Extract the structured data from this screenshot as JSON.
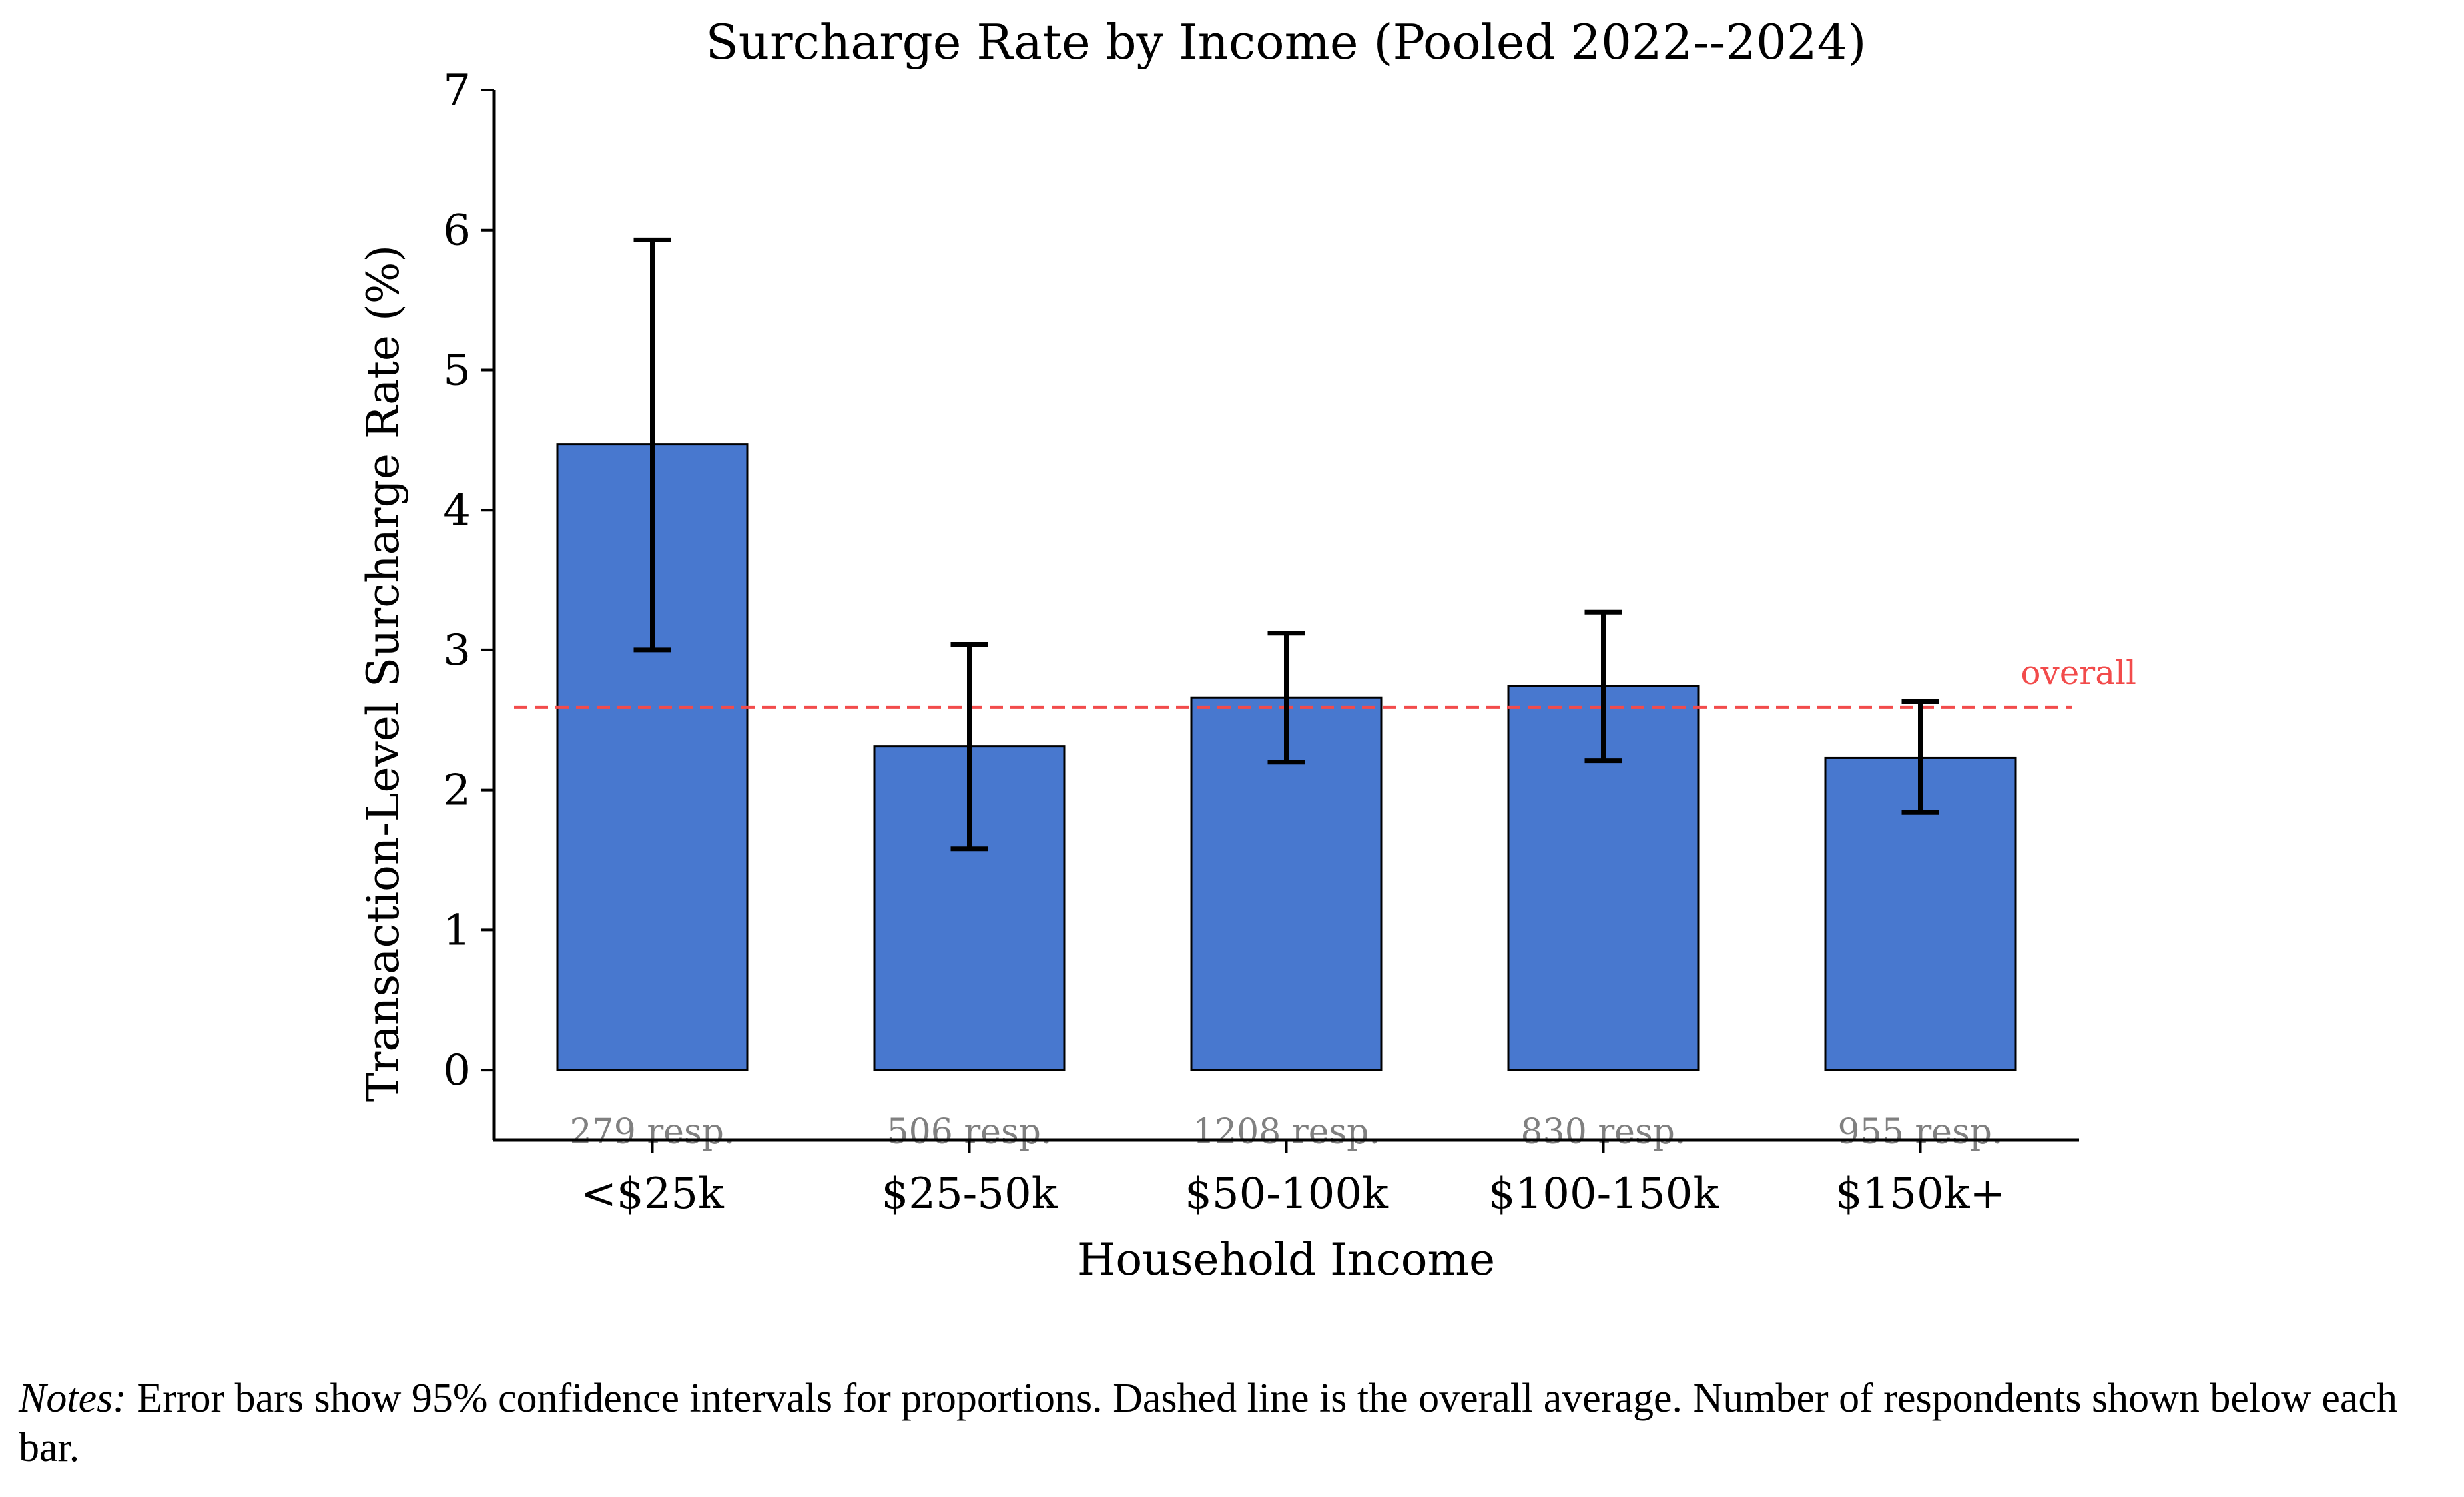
{
  "chart_data": {
    "type": "bar",
    "title": "Surcharge Rate by Income (Pooled 2022--2024)",
    "xlabel": "Household Income",
    "ylabel": "Transaction-Level Surcharge Rate (%)",
    "categories": [
      "<$25k",
      "$25-50k",
      "$50-100k",
      "$100-150k",
      "$150k+"
    ],
    "values": [
      4.47,
      2.31,
      2.66,
      2.74,
      2.23
    ],
    "ci_low": [
      3.0,
      1.58,
      2.2,
      2.21,
      1.84
    ],
    "ci_high": [
      5.93,
      3.04,
      3.12,
      3.27,
      2.63
    ],
    "respondent_labels": [
      "279 resp.",
      "506 resp.",
      "1208 resp.",
      "830 resp.",
      "955 resp."
    ],
    "overall": 2.59,
    "overall_label": "overall",
    "ylim": [
      -0.5,
      7
    ],
    "yticks": [
      0,
      1,
      2,
      3,
      4,
      5,
      6,
      7
    ],
    "grid": false,
    "bar_color": "#4878cf",
    "overall_color": "#f24b4b",
    "resp_label_color": "#808080"
  },
  "notes": {
    "lead": "Notes:",
    "text": "Error bars show 95% confidence intervals for proportions. Dashed line is the overall average. Number of respondents shown below each bar."
  }
}
